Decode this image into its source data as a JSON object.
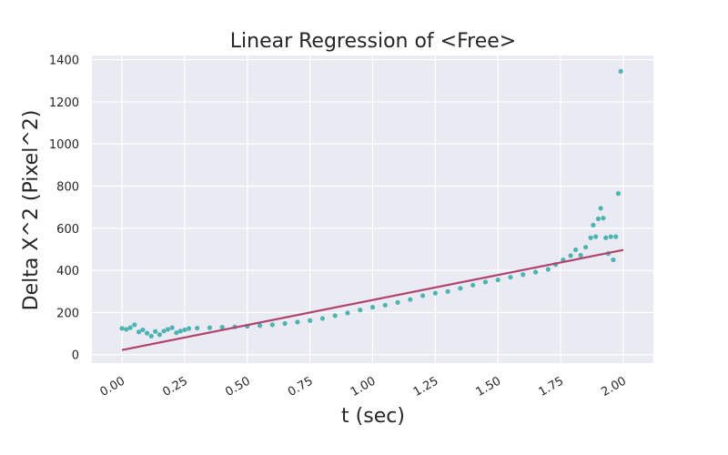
{
  "chart_data": {
    "type": "scatter",
    "title": "Linear Regression of <Free>",
    "xlabel": "t (sec)",
    "ylabel": "Delta X^2 (Pixel^2)",
    "xlim": [
      -0.12,
      2.12
    ],
    "ylim": [
      -40,
      1420
    ],
    "xticks": [
      0.0,
      0.25,
      0.5,
      0.75,
      1.0,
      1.25,
      1.5,
      1.75,
      2.0
    ],
    "xtick_labels": [
      "0.00",
      "0.25",
      "0.50",
      "0.75",
      "1.00",
      "1.25",
      "1.50",
      "1.75",
      "2.00"
    ],
    "yticks": [
      0,
      200,
      400,
      600,
      800,
      1000,
      1200,
      1400
    ],
    "ytick_labels": [
      "0",
      "200",
      "400",
      "600",
      "800",
      "1000",
      "1200",
      "1400"
    ],
    "grid": true,
    "colors": {
      "background": "#eaeaf2",
      "grid": "#ffffff",
      "points": "#4eb3b3",
      "fit_line": "#b0446e"
    },
    "series": [
      {
        "kind": "scatter",
        "x": [
          0.0,
          0.017,
          0.033,
          0.05,
          0.067,
          0.083,
          0.1,
          0.117,
          0.133,
          0.15,
          0.167,
          0.183,
          0.2,
          0.217,
          0.233,
          0.25,
          0.267,
          0.3,
          0.35,
          0.4,
          0.45,
          0.5,
          0.55,
          0.6,
          0.65,
          0.7,
          0.75,
          0.8,
          0.85,
          0.9,
          0.95,
          1.0,
          1.05,
          1.1,
          1.15,
          1.2,
          1.25,
          1.3,
          1.35,
          1.4,
          1.45,
          1.5,
          1.55,
          1.6,
          1.65,
          1.7,
          1.73,
          1.76,
          1.79,
          1.81,
          1.83,
          1.85,
          1.87,
          1.88,
          1.89,
          1.9,
          1.91,
          1.92,
          1.93,
          1.94,
          1.95,
          1.96,
          1.97,
          1.98,
          1.99
        ],
        "y": [
          125,
          120,
          128,
          142,
          108,
          118,
          102,
          88,
          110,
          95,
          112,
          120,
          128,
          104,
          112,
          118,
          124,
          126,
          128,
          130,
          132,
          135,
          138,
          142,
          148,
          155,
          162,
          172,
          185,
          198,
          212,
          225,
          235,
          248,
          262,
          280,
          292,
          300,
          315,
          330,
          345,
          355,
          368,
          380,
          392,
          405,
          428,
          450,
          470,
          498,
          472,
          510,
          555,
          615,
          560,
          645,
          695,
          648,
          555,
          480,
          560,
          450,
          560,
          765,
          1345
        ]
      },
      {
        "kind": "line",
        "x": [
          0.0,
          2.0
        ],
        "y": [
          22,
          497
        ]
      }
    ]
  }
}
